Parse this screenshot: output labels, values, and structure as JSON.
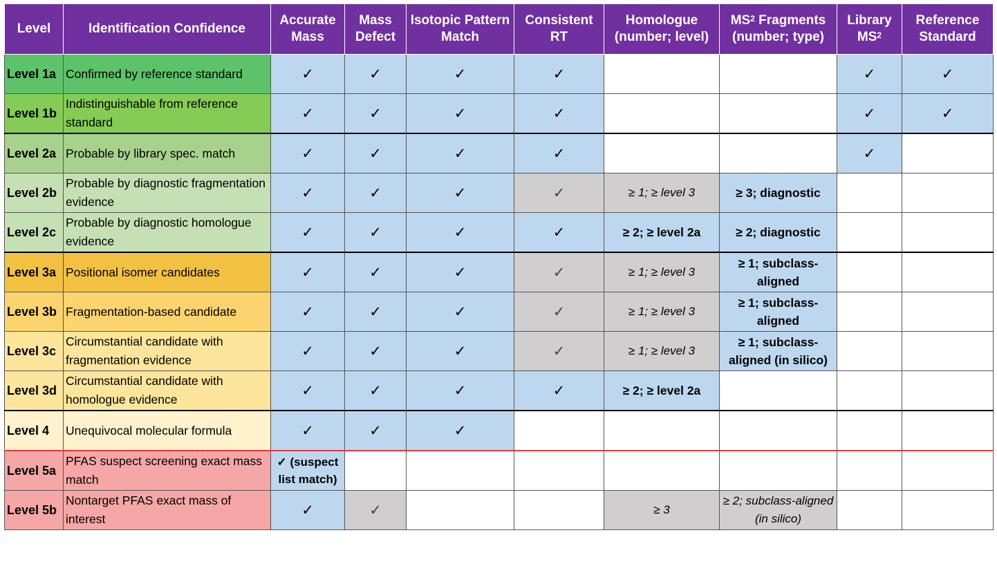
{
  "headers": {
    "level": "Level",
    "confidence": "Identification Confidence",
    "accurate_mass": "Accurate Mass",
    "mass_defect": "Mass Defect",
    "isotopic": "Isotopic Pattern Match",
    "consistent_rt": "Consistent RT",
    "homologue": "Homologue (number; level)",
    "ms2_pre": "MS",
    "ms2_sup": "2",
    "ms2_line1_rest": " Fragments",
    "ms2_line2": "(number; type)",
    "library_line1": "Library",
    "library_ms": "MS",
    "library_sup": "2",
    "reference": "Reference Standard"
  },
  "check": "✓",
  "colors": {
    "header": "#7030a0",
    "blue": "#bdd7ee",
    "grey": "#d0cece",
    "level_1a": "#5cc36a",
    "level_1b": "#84cc55",
    "level_2a": "#a9d18e",
    "level_2bc": "#c5e0b4",
    "level_3a": "#f3c142",
    "level_3b": "#fbd470",
    "level_3cd": "#fde59c",
    "level_4": "#fff2cc",
    "level_5": "#f4a7a6"
  },
  "rows": [
    {
      "level": "Level 1a",
      "description": "Confirmed by reference standard",
      "accurate_mass": "✓",
      "mass_defect": "✓",
      "isotopic": "✓",
      "consistent_rt": "✓",
      "homologue": "",
      "ms2_fragments": "",
      "library_ms2": "✓",
      "reference_standard": "✓"
    },
    {
      "level": "Level 1b",
      "description": "Indistinguishable from reference standard",
      "accurate_mass": "✓",
      "mass_defect": "✓",
      "isotopic": "✓",
      "consistent_rt": "✓",
      "homologue": "",
      "ms2_fragments": "",
      "library_ms2": "✓",
      "reference_standard": "✓"
    },
    {
      "level": "Level 2a",
      "description": "Probable by library spec. match",
      "accurate_mass": "✓",
      "mass_defect": "✓",
      "isotopic": "✓",
      "consistent_rt": "✓",
      "homologue": "",
      "ms2_fragments": "",
      "library_ms2": "✓",
      "reference_standard": ""
    },
    {
      "level": "Level 2b",
      "description": "Probable by diagnostic fragmentation evidence",
      "accurate_mass": "✓",
      "mass_defect": "✓",
      "isotopic": "✓",
      "consistent_rt": "✓",
      "homologue": "≥ 1; ≥ level 3",
      "ms2_fragments": "≥ 3; diagnostic",
      "library_ms2": "",
      "reference_standard": ""
    },
    {
      "level": "Level 2c",
      "description": "Probable by diagnostic homologue evidence",
      "accurate_mass": "✓",
      "mass_defect": "✓",
      "isotopic": "✓",
      "consistent_rt": "✓",
      "homologue": "≥ 2; ≥ level 2a",
      "ms2_fragments": "≥ 2; diagnostic",
      "library_ms2": "",
      "reference_standard": ""
    },
    {
      "level": "Level 3a",
      "description": "Positional isomer candidates",
      "accurate_mass": "✓",
      "mass_defect": "✓",
      "isotopic": "✓",
      "consistent_rt": "✓",
      "homologue": "≥ 1; ≥ level 3",
      "ms2_fragments": "≥ 1; subclass-aligned",
      "library_ms2": "",
      "reference_standard": ""
    },
    {
      "level": "Level 3b",
      "description": "Fragmentation-based candidate",
      "accurate_mass": "✓",
      "mass_defect": "✓",
      "isotopic": "✓",
      "consistent_rt": "✓",
      "homologue": "≥ 1; ≥ level 3",
      "ms2_fragments": "≥ 1; subclass-aligned",
      "library_ms2": "",
      "reference_standard": ""
    },
    {
      "level": "Level 3c",
      "description": "Circumstantial candidate with fragmentation evidence",
      "accurate_mass": "✓",
      "mass_defect": "✓",
      "isotopic": "✓",
      "consistent_rt": "✓",
      "homologue": "≥ 1; ≥ level 3",
      "ms2_fragments": "≥ 1; subclass-aligned (in silico)",
      "library_ms2": "",
      "reference_standard": ""
    },
    {
      "level": "Level 3d",
      "description": "Circumstantial candidate with homologue evidence",
      "accurate_mass": "✓",
      "mass_defect": "✓",
      "isotopic": "✓",
      "consistent_rt": "✓",
      "homologue": "≥ 2; ≥ level 2a",
      "ms2_fragments": "",
      "library_ms2": "",
      "reference_standard": ""
    },
    {
      "level": "Level 4",
      "description": "Unequivocal molecular formula",
      "accurate_mass": "✓",
      "mass_defect": "✓",
      "isotopic": "✓",
      "consistent_rt": "",
      "homologue": "",
      "ms2_fragments": "",
      "library_ms2": "",
      "reference_standard": ""
    },
    {
      "level": "Level 5a",
      "description": "PFAS suspect screening exact mass match",
      "accurate_mass": "✓ (suspect list match)",
      "mass_defect": "",
      "isotopic": "",
      "consistent_rt": "",
      "homologue": "",
      "ms2_fragments": "",
      "library_ms2": "",
      "reference_standard": ""
    },
    {
      "level": "Level 5b",
      "description": "Nontarget PFAS exact mass of interest",
      "accurate_mass": "✓",
      "mass_defect": "✓",
      "isotopic": "",
      "consistent_rt": "",
      "homologue": "≥ 3",
      "ms2_fragments": "≥ 2; subclass-aligned (in silico)",
      "library_ms2": "",
      "reference_standard": ""
    }
  ]
}
